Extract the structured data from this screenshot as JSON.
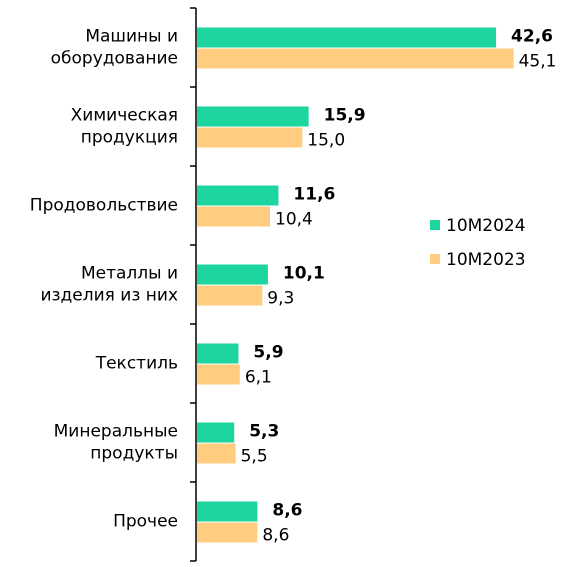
{
  "chart_data": {
    "type": "bar",
    "orientation": "horizontal",
    "categories": [
      [
        "Машины и",
        "оборудование"
      ],
      [
        "Химическая",
        "продукция"
      ],
      [
        "Продовольствие"
      ],
      [
        "Металлы и",
        "изделия из них"
      ],
      [
        "Текстиль"
      ],
      [
        "Минеральные",
        "продукты"
      ],
      [
        "Прочее"
      ]
    ],
    "series": [
      {
        "name": "10M2024",
        "color": "#1dd69f",
        "values": [
          42.6,
          15.9,
          11.6,
          10.1,
          5.9,
          5.3,
          8.6
        ],
        "value_labels": [
          "42,6",
          "15,9",
          "11,6",
          "10,1",
          "5,9",
          "5,3",
          "8,6"
        ]
      },
      {
        "name": "10M2023",
        "color": "#ffcc80",
        "values": [
          45.1,
          15.0,
          10.4,
          9.3,
          6.1,
          5.5,
          8.6
        ],
        "value_labels": [
          "45,1",
          "15,0",
          "10,4",
          "9,3",
          "6,1",
          "5,5",
          "8,6"
        ]
      }
    ],
    "legend": "right"
  }
}
